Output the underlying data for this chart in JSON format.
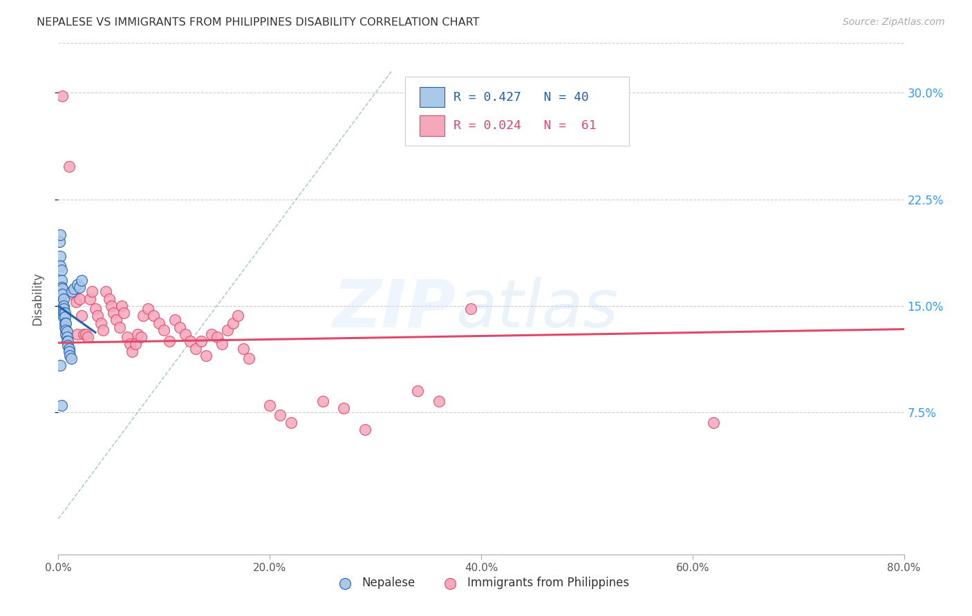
{
  "title": "NEPALESE VS IMMIGRANTS FROM PHILIPPINES DISABILITY CORRELATION CHART",
  "source": "Source: ZipAtlas.com",
  "ylabel": "Disability",
  "ytick_values": [
    0.075,
    0.15,
    0.225,
    0.3
  ],
  "ytick_labels": [
    "7.5%",
    "15.0%",
    "22.5%",
    "30.0%"
  ],
  "xtick_values": [
    0.0,
    0.2,
    0.4,
    0.6,
    0.8
  ],
  "xtick_labels": [
    "0.0%",
    "20.0%",
    "40.0%",
    "60.0%",
    "80.0%"
  ],
  "xlim": [
    0.0,
    0.8
  ],
  "ylim": [
    -0.025,
    0.335
  ],
  "nepalese_color": "#aac8e8",
  "philippines_color": "#f5a8bc",
  "line_nepalese_color": "#2060b0",
  "line_philippines_color": "#e04868",
  "diagonal_color": "#90b8d8",
  "background_color": "#ffffff",
  "nepalese_x": [
    0.001,
    0.002,
    0.002,
    0.002,
    0.003,
    0.003,
    0.003,
    0.003,
    0.004,
    0.004,
    0.004,
    0.004,
    0.005,
    0.005,
    0.005,
    0.005,
    0.005,
    0.006,
    0.006,
    0.006,
    0.006,
    0.007,
    0.007,
    0.007,
    0.008,
    0.008,
    0.008,
    0.009,
    0.009,
    0.01,
    0.01,
    0.011,
    0.012,
    0.013,
    0.015,
    0.018,
    0.02,
    0.022,
    0.002,
    0.003
  ],
  "nepalese_y": [
    0.195,
    0.2,
    0.185,
    0.178,
    0.175,
    0.168,
    0.163,
    0.158,
    0.162,
    0.158,
    0.152,
    0.148,
    0.155,
    0.15,
    0.148,
    0.145,
    0.142,
    0.145,
    0.142,
    0.138,
    0.135,
    0.138,
    0.133,
    0.13,
    0.132,
    0.128,
    0.125,
    0.125,
    0.122,
    0.12,
    0.118,
    0.115,
    0.113,
    0.16,
    0.162,
    0.165,
    0.163,
    0.168,
    0.108,
    0.08
  ],
  "philippines_x": [
    0.004,
    0.01,
    0.014,
    0.017,
    0.018,
    0.02,
    0.022,
    0.024,
    0.026,
    0.028,
    0.03,
    0.032,
    0.035,
    0.037,
    0.04,
    0.042,
    0.045,
    0.048,
    0.05,
    0.052,
    0.055,
    0.058,
    0.06,
    0.062,
    0.065,
    0.068,
    0.07,
    0.073,
    0.075,
    0.078,
    0.08,
    0.085,
    0.09,
    0.095,
    0.1,
    0.105,
    0.11,
    0.115,
    0.12,
    0.125,
    0.13,
    0.135,
    0.14,
    0.145,
    0.15,
    0.155,
    0.16,
    0.165,
    0.17,
    0.175,
    0.18,
    0.2,
    0.21,
    0.22,
    0.25,
    0.27,
    0.29,
    0.34,
    0.36,
    0.39,
    0.62
  ],
  "philippines_y": [
    0.298,
    0.248,
    0.158,
    0.153,
    0.13,
    0.155,
    0.143,
    0.13,
    0.13,
    0.128,
    0.155,
    0.16,
    0.148,
    0.143,
    0.138,
    0.133,
    0.16,
    0.155,
    0.15,
    0.145,
    0.14,
    0.135,
    0.15,
    0.145,
    0.128,
    0.123,
    0.118,
    0.123,
    0.13,
    0.128,
    0.143,
    0.148,
    0.143,
    0.138,
    0.133,
    0.125,
    0.14,
    0.135,
    0.13,
    0.125,
    0.12,
    0.125,
    0.115,
    0.13,
    0.128,
    0.123,
    0.133,
    0.138,
    0.143,
    0.12,
    0.113,
    0.08,
    0.073,
    0.068,
    0.083,
    0.078,
    0.063,
    0.09,
    0.083,
    0.148,
    0.068
  ]
}
